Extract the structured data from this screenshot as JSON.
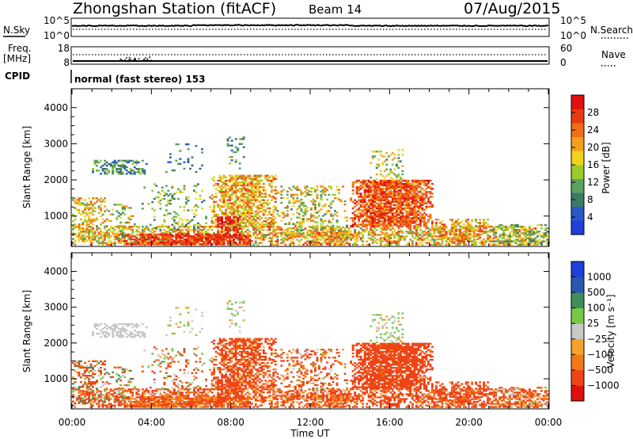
{
  "header": {
    "station": "Zhongshan Station (fitACF)",
    "beam": "Beam 14",
    "date": "07/Aug/2015"
  },
  "top_panels": {
    "nsky_label": "N.Sky",
    "nsky_ticks": [
      "10^5",
      "10^0"
    ],
    "nsearch_label": "N.Search",
    "nsearch_ticks": [
      "10^5",
      "10^0"
    ],
    "freq_label_1": "Freq.",
    "freq_label_2": "[MHz]",
    "freq_ticks": [
      "18",
      "8"
    ],
    "nave_label": "Nave",
    "nave_ticks": [
      "60",
      "0"
    ],
    "cpid_label": "CPID",
    "cpid_text": "normal (fast stereo) 153"
  },
  "colors": {
    "power_scale": [
      "#1f3fd8",
      "#2858c8",
      "#3c7a64",
      "#5aa060",
      "#9ccc2c",
      "#f0d21e",
      "#f2a01c",
      "#f06e16",
      "#e83a12",
      "#e01010"
    ],
    "velocity_scale": [
      "#e01010",
      "#ee4416",
      "#f07a1a",
      "#f6a22a",
      "#c8c8c4",
      "#78c848",
      "#3e8e5a",
      "#2a58b0",
      "#1f3fd8"
    ]
  },
  "chart_data": [
    {
      "type": "heatmap",
      "title": "",
      "xlabel": "Time UT",
      "ylabel": "Slant Range [km]",
      "x_ticks": [
        "00:00",
        "04:00",
        "08:00",
        "12:00",
        "16:00",
        "20:00",
        "00:00"
      ],
      "xlim_hours": [
        0,
        24
      ],
      "y_ticks": [
        "1000",
        "2000",
        "3000",
        "4000"
      ],
      "ylim": [
        180,
        4500
      ],
      "colorbar": {
        "label": "Power [dB]",
        "ticks": [
          "4",
          "8",
          "12",
          "16",
          "20",
          "24",
          "28"
        ],
        "range": [
          0,
          30
        ]
      }
    },
    {
      "type": "heatmap",
      "title": "",
      "xlabel": "Time UT",
      "ylabel": "Slant Range [km]",
      "x_ticks": [
        "00:00",
        "04:00",
        "08:00",
        "12:00",
        "16:00",
        "20:00",
        "00:00"
      ],
      "xlim_hours": [
        0,
        24
      ],
      "y_ticks": [
        "1000",
        "2000",
        "3000",
        "4000"
      ],
      "ylim": [
        180,
        4500
      ],
      "colorbar": {
        "label": "Velocity [m s⁻¹]",
        "ticks": [
          "1000",
          "500",
          "100",
          "25",
          "−25",
          "−100",
          "−500",
          "−1000"
        ],
        "range": [
          -1500,
          1500
        ]
      }
    }
  ],
  "scatter_regions": [
    {
      "t0": 0.0,
      "t1": 24.0,
      "r0": 190,
      "r1": 700,
      "dens": 0.5,
      "pow": 18,
      "pvar": 8,
      "vel": -150,
      "vvar": 120
    },
    {
      "t0": 2.3,
      "t1": 9.0,
      "r0": 200,
      "r1": 480,
      "dens": 0.8,
      "pow": 26,
      "pvar": 4,
      "vel": -110,
      "vvar": 90
    },
    {
      "t0": 0.0,
      "t1": 1.8,
      "r0": 300,
      "r1": 1500,
      "dens": 0.55,
      "pow": 17,
      "pvar": 7,
      "vel": -120,
      "vvar": 300
    },
    {
      "t0": 1.8,
      "t1": 3.2,
      "r0": 350,
      "r1": 1300,
      "dens": 0.35,
      "pow": 14,
      "pvar": 8,
      "vel": -60,
      "vvar": 200
    },
    {
      "t0": 1.0,
      "t1": 3.8,
      "r0": 2150,
      "r1": 2550,
      "dens": 0.55,
      "pow": 9,
      "pvar": 5,
      "vel": 5,
      "vvar": 20
    },
    {
      "t0": 3.5,
      "t1": 7.0,
      "r0": 600,
      "r1": 1900,
      "dens": 0.18,
      "pow": 12,
      "pvar": 6,
      "vel": -90,
      "vvar": 200
    },
    {
      "t0": 4.5,
      "t1": 6.5,
      "r0": 2200,
      "r1": 3000,
      "dens": 0.12,
      "pow": 8,
      "pvar": 4,
      "vel": 10,
      "vvar": 60
    },
    {
      "t0": 7.0,
      "t1": 10.2,
      "r0": 700,
      "r1": 2100,
      "dens": 0.7,
      "pow": 19,
      "pvar": 7,
      "vel": -180,
      "vvar": 160
    },
    {
      "t0": 7.8,
      "t1": 8.6,
      "r0": 2300,
      "r1": 3200,
      "dens": 0.4,
      "pow": 9,
      "pvar": 4,
      "vel": 10,
      "vvar": 40
    },
    {
      "t0": 7.3,
      "t1": 8.4,
      "r0": 450,
      "r1": 950,
      "dens": 0.8,
      "pow": 27,
      "pvar": 3,
      "vel": -260,
      "vvar": 120
    },
    {
      "t0": 10.2,
      "t1": 13.8,
      "r0": 400,
      "r1": 1800,
      "dens": 0.3,
      "pow": 16,
      "pvar": 8,
      "vel": -140,
      "vvar": 180
    },
    {
      "t0": 14.0,
      "t1": 18.2,
      "r0": 700,
      "r1": 2000,
      "dens": 0.85,
      "pow": 24,
      "pvar": 5,
      "vel": -220,
      "vvar": 140
    },
    {
      "t0": 15.0,
      "t1": 16.7,
      "r0": 2000,
      "r1": 2850,
      "dens": 0.35,
      "pow": 14,
      "pvar": 6,
      "vel": 10,
      "vvar": 60
    },
    {
      "t0": 18.2,
      "t1": 21.0,
      "r0": 250,
      "r1": 900,
      "dens": 0.45,
      "pow": 20,
      "pvar": 7,
      "vel": -200,
      "vvar": 150
    },
    {
      "t0": 21.0,
      "t1": 24.0,
      "r0": 190,
      "r1": 750,
      "dens": 0.3,
      "pow": 12,
      "pvar": 6,
      "vel": -80,
      "vvar": 120
    },
    {
      "t0": 12.0,
      "t1": 14.0,
      "r0": 200,
      "r1": 550,
      "dens": 0.5,
      "pow": 20,
      "pvar": 6,
      "vel": -120,
      "vvar": 100
    }
  ]
}
